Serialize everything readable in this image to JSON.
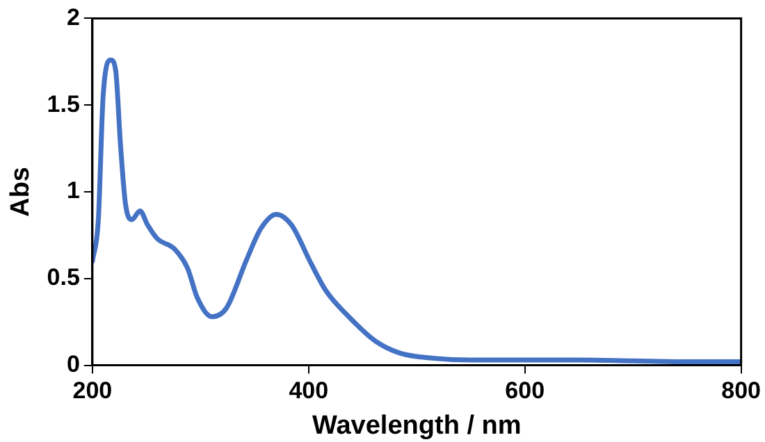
{
  "chart_data": {
    "type": "line",
    "xlabel": "Wavelength / nm",
    "ylabel": "Abs",
    "xlim": [
      200,
      800
    ],
    "xticks": [
      200,
      400,
      600,
      800
    ],
    "ylim": [
      0,
      2
    ],
    "yticks": [
      0,
      0.5,
      1,
      1.5,
      2
    ],
    "grid": false,
    "legend": false,
    "marker": "none",
    "line_style": "solid",
    "series": [
      {
        "color": "#4472c4",
        "x": [
          200,
          205.5,
          210,
          217,
          221.5,
          226,
          230.6,
          236.6,
          244,
          251,
          260,
          276,
          288,
          297,
          310.6,
          324,
          342.7,
          356,
          370,
          384,
          402,
          416,
          438.7,
          461.6,
          484.5,
          516.5,
          550,
          598.8,
          650,
          700,
          750,
          800
        ],
        "values": [
          0.6,
          0.84,
          1.56,
          1.76,
          1.7,
          1.27,
          0.93,
          0.84,
          0.89,
          0.81,
          0.73,
          0.67,
          0.56,
          0.39,
          0.28,
          0.33,
          0.61,
          0.79,
          0.87,
          0.81,
          0.59,
          0.43,
          0.27,
          0.14,
          0.07,
          0.04,
          0.03,
          0.03,
          0.03,
          0.025,
          0.02,
          0.02
        ]
      }
    ]
  }
}
